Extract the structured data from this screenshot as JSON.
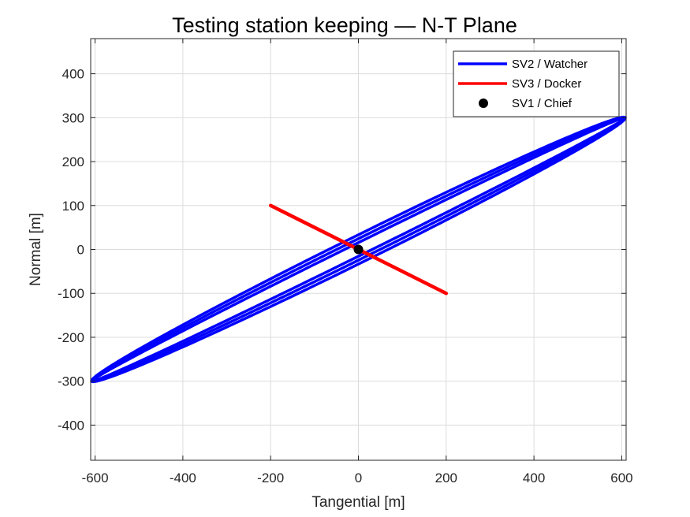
{
  "chart_data": {
    "type": "line",
    "title": "Testing station keeping — N-T Plane",
    "xlabel": "Tangential [m]",
    "ylabel": "Normal [m]",
    "xlim": [
      -610,
      610
    ],
    "ylim": [
      -480,
      480
    ],
    "xticks": [
      -600,
      -400,
      -200,
      0,
      200,
      400,
      600
    ],
    "yticks": [
      -400,
      -300,
      -200,
      -100,
      0,
      100,
      200,
      300,
      400
    ],
    "grid": true,
    "legend_location": "top-right",
    "series": [
      {
        "name": "SV2 / Watcher",
        "kind": "line",
        "color": "#0000ff",
        "orbit": {
          "t_amplitude": 608,
          "n_amplitude": 300,
          "thicknesses": [
            14,
            22,
            30
          ]
        }
      },
      {
        "name": "SV3 / Docker",
        "kind": "line",
        "color": "#ff0000",
        "x": [
          -200,
          200
        ],
        "y": [
          100,
          -100
        ]
      },
      {
        "name": "SV1 / Chief",
        "kind": "marker",
        "color": "#000000",
        "x": [
          0
        ],
        "y": [
          0
        ]
      }
    ]
  }
}
